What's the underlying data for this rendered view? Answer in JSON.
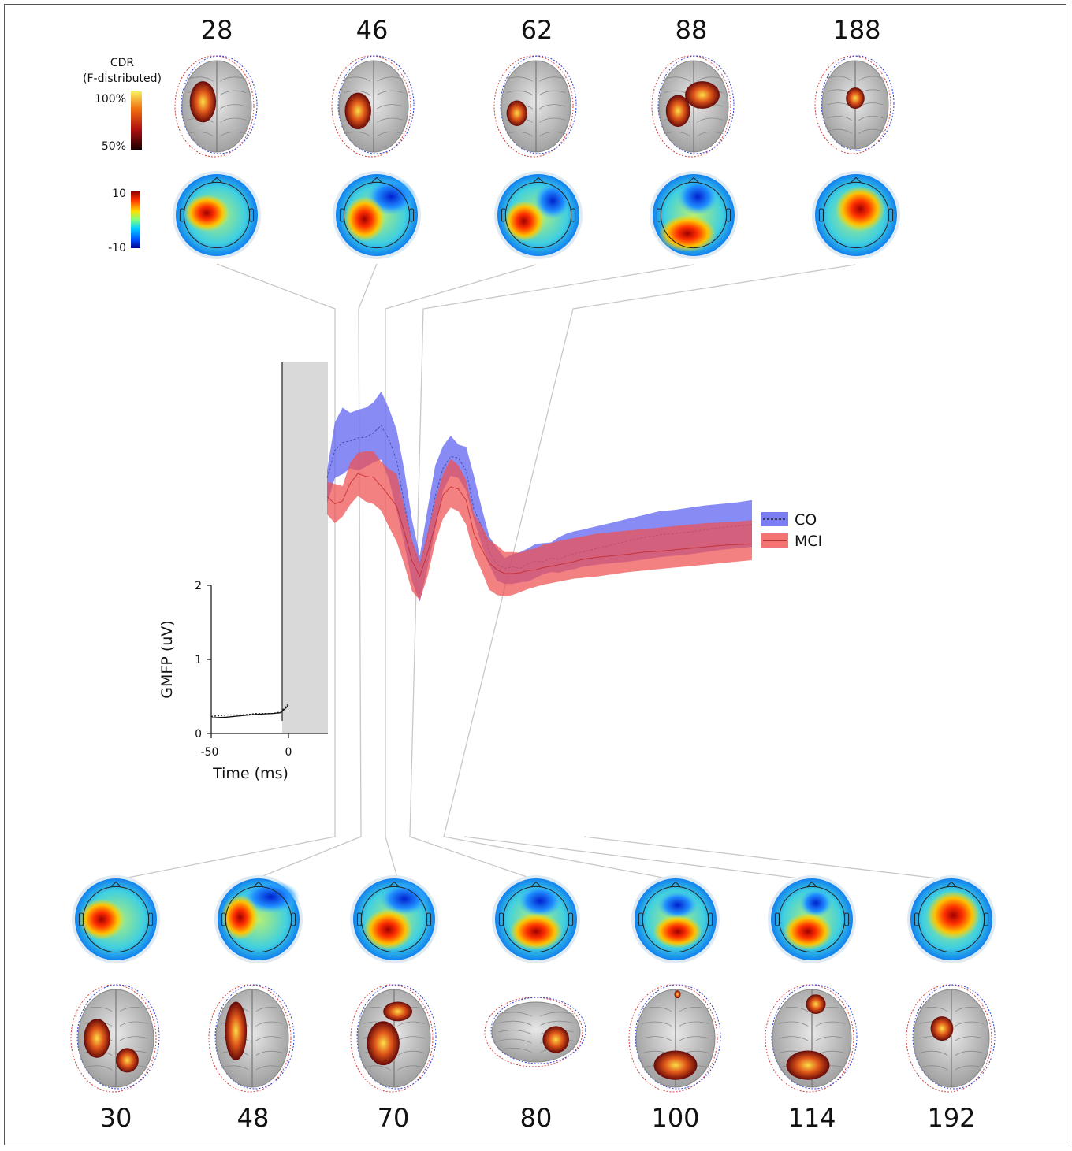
{
  "chart_data": {
    "type": "area",
    "xlabel": "Time (ms)",
    "ylabel": "GMFP (uV)",
    "xlim": [
      -50,
      300
    ],
    "ylim": [
      0,
      2
    ],
    "xticks": [
      "-50",
      "0"
    ],
    "yticks": [
      "0",
      "1",
      "2"
    ],
    "stim_artifact_window_ms": [
      -5,
      25
    ],
    "legend": {
      "placement": "right",
      "entries": [
        "CO",
        "MCI"
      ]
    },
    "series": [
      {
        "name": "CO",
        "color": "#5a5ef0",
        "style": "dashed",
        "x": [
          -50,
          -40,
          -30,
          -20,
          -10,
          -5,
          0
        ],
        "mean": [
          0.23,
          0.25,
          0.25,
          0.27,
          0.27,
          0.29,
          0.4
        ],
        "x_band": [
          25,
          30,
          35,
          40,
          45,
          50,
          55,
          60,
          65,
          70,
          75,
          80,
          85,
          90,
          95,
          100,
          105,
          110,
          115,
          120,
          125,
          130,
          135,
          140,
          145,
          150,
          155,
          160,
          165,
          170,
          175,
          180,
          185,
          190,
          200,
          210,
          220,
          230,
          240,
          250,
          260,
          270,
          280,
          290,
          300
        ],
        "band_mean": [
          3.45,
          3.82,
          3.93,
          3.95,
          3.99,
          4.0,
          4.06,
          4.16,
          3.97,
          3.69,
          3.09,
          2.57,
          2.25,
          2.66,
          3.2,
          3.58,
          3.74,
          3.72,
          3.55,
          3.03,
          2.8,
          2.45,
          2.28,
          2.23,
          2.25,
          2.23,
          2.29,
          2.33,
          2.32,
          2.37,
          2.35,
          2.4,
          2.43,
          2.45,
          2.5,
          2.55,
          2.6,
          2.65,
          2.68,
          2.7,
          2.72,
          2.75,
          2.78,
          2.8,
          2.82
        ],
        "band_lower": [
          3.1,
          3.45,
          3.5,
          3.58,
          3.55,
          3.6,
          3.66,
          3.7,
          3.43,
          3.01,
          2.56,
          2.05,
          1.78,
          2.23,
          2.76,
          3.28,
          3.48,
          3.45,
          3.28,
          2.89,
          2.55,
          2.28,
          2.06,
          2.02,
          2.02,
          2.04,
          2.05,
          2.1,
          2.15,
          2.18,
          2.17,
          2.2,
          2.22,
          2.25,
          2.28,
          2.3,
          2.32,
          2.35,
          2.38,
          2.4,
          2.42,
          2.45,
          2.48,
          2.5,
          2.52
        ],
        "band_upper": [
          3.55,
          4.2,
          4.4,
          4.33,
          4.37,
          4.4,
          4.47,
          4.62,
          4.39,
          4.1,
          3.55,
          2.88,
          2.4,
          3.03,
          3.62,
          3.88,
          4.02,
          3.9,
          3.87,
          3.48,
          3.05,
          2.66,
          2.5,
          2.37,
          2.42,
          2.45,
          2.5,
          2.56,
          2.57,
          2.58,
          2.65,
          2.7,
          2.73,
          2.75,
          2.8,
          2.85,
          2.9,
          2.95,
          3.0,
          3.02,
          3.05,
          3.08,
          3.1,
          3.12,
          3.15
        ]
      },
      {
        "name": "MCI",
        "color": "#f05050",
        "style": "solid",
        "x": [
          -50,
          -40,
          -30,
          -20,
          -10,
          -5,
          0
        ],
        "mean": [
          0.21,
          0.22,
          0.24,
          0.26,
          0.27,
          0.28,
          0.38
        ],
        "x_band": [
          25,
          30,
          35,
          40,
          45,
          50,
          55,
          60,
          65,
          70,
          75,
          80,
          85,
          90,
          95,
          100,
          105,
          110,
          115,
          120,
          125,
          130,
          135,
          140,
          145,
          150,
          155,
          160,
          165,
          170,
          175,
          180,
          185,
          190,
          200,
          210,
          220,
          230,
          240,
          250,
          260,
          270,
          280,
          290,
          300
        ],
        "band_mean": [
          3.2,
          3.1,
          3.14,
          3.38,
          3.51,
          3.47,
          3.46,
          3.34,
          3.21,
          3.07,
          2.72,
          2.33,
          2.12,
          2.44,
          2.82,
          3.22,
          3.33,
          3.3,
          3.15,
          2.7,
          2.49,
          2.3,
          2.21,
          2.16,
          2.16,
          2.17,
          2.2,
          2.21,
          2.24,
          2.26,
          2.28,
          2.3,
          2.32,
          2.35,
          2.38,
          2.4,
          2.42,
          2.45,
          2.46,
          2.48,
          2.5,
          2.52,
          2.54,
          2.55,
          2.56
        ],
        "band_lower": [
          2.96,
          2.84,
          2.93,
          3.09,
          3.21,
          3.13,
          3.1,
          3.01,
          2.79,
          2.59,
          2.28,
          1.92,
          1.8,
          2.12,
          2.58,
          2.9,
          3.05,
          3.0,
          2.82,
          2.42,
          2.2,
          1.94,
          1.87,
          1.85,
          1.87,
          1.91,
          1.95,
          1.98,
          2.01,
          2.03,
          2.05,
          2.07,
          2.09,
          2.1,
          2.12,
          2.15,
          2.18,
          2.2,
          2.22,
          2.24,
          2.26,
          2.28,
          2.3,
          2.32,
          2.34
        ],
        "band_upper": [
          3.4,
          3.37,
          3.34,
          3.66,
          3.79,
          3.81,
          3.81,
          3.67,
          3.57,
          3.51,
          3.04,
          2.61,
          2.31,
          2.71,
          3.15,
          3.51,
          3.71,
          3.62,
          3.42,
          2.97,
          2.8,
          2.61,
          2.54,
          2.45,
          2.45,
          2.44,
          2.48,
          2.5,
          2.55,
          2.57,
          2.6,
          2.62,
          2.64,
          2.66,
          2.7,
          2.72,
          2.74,
          2.76,
          2.78,
          2.8,
          2.82,
          2.84,
          2.85,
          2.86,
          2.88
        ]
      }
    ]
  },
  "colorbar_cdr": {
    "title_line1": "CDR",
    "title_line2": "(F-distributed)",
    "max_label": "100%",
    "min_label": "50%"
  },
  "colorbar_topo": {
    "max_label": "10",
    "min_label": "-10"
  },
  "top_latencies": [
    "28",
    "46",
    "62",
    "88",
    "188"
  ],
  "bottom_latencies": [
    "30",
    "48",
    "70",
    "80",
    "100",
    "114",
    "192"
  ],
  "colors": {
    "co": "#5a5ef0",
    "mci": "#f05050",
    "artifact_box": "#d9d9d9",
    "connector": "#c8c8c8"
  }
}
